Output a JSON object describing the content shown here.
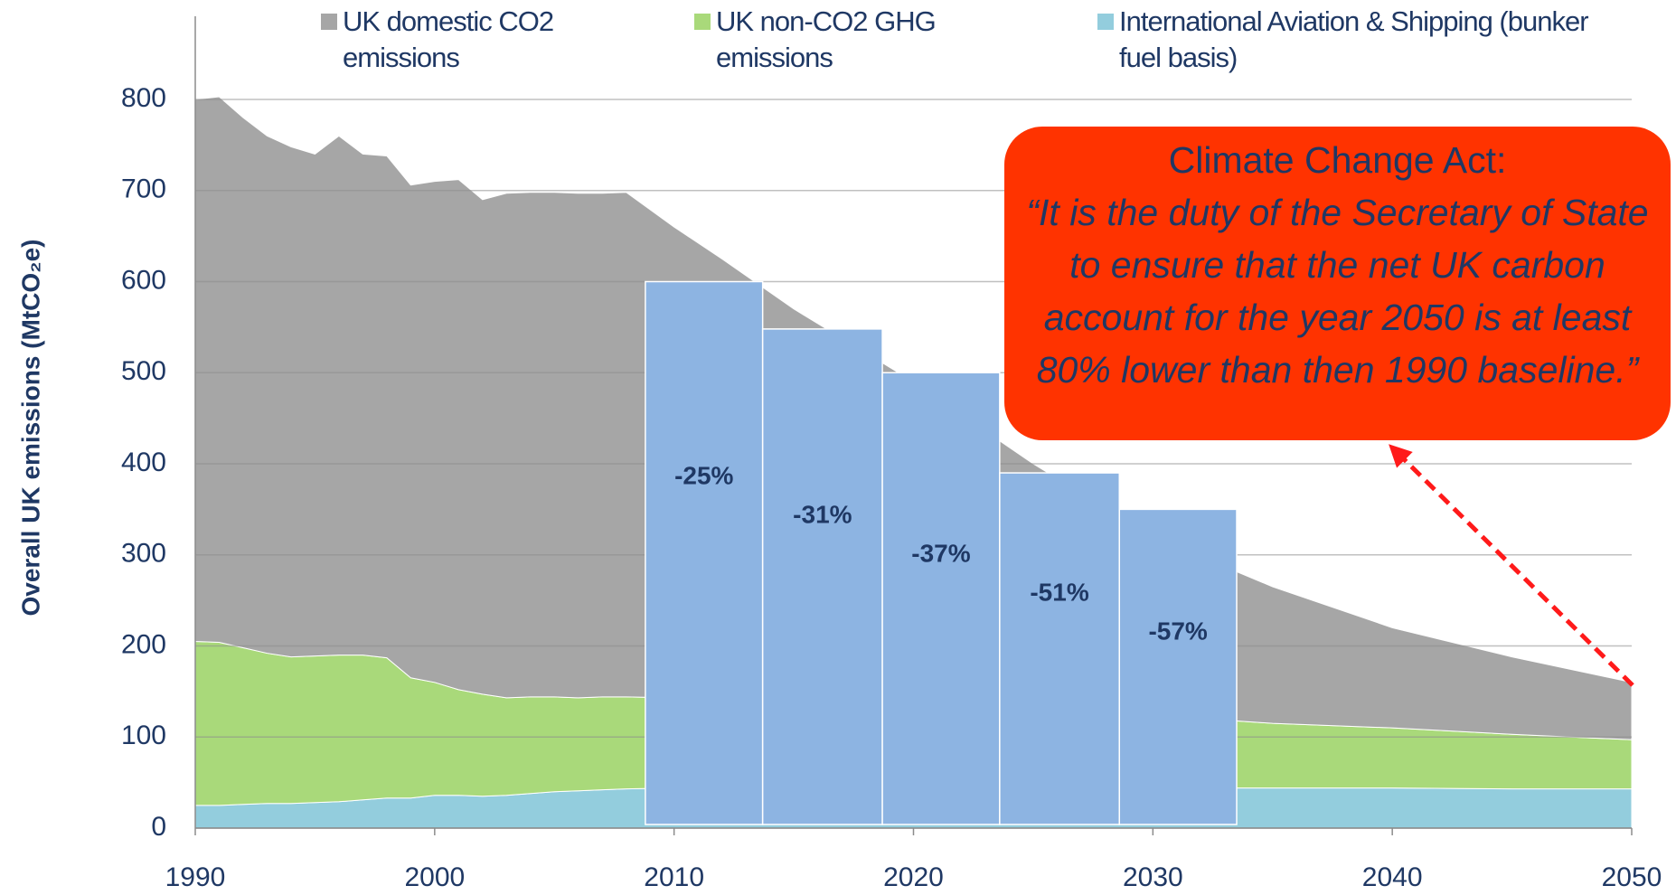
{
  "chart_data": {
    "type": "stacked_area",
    "y_label": "Overall UK emissions (MtCO₂e)",
    "x": [
      1990,
      1991,
      1992,
      1993,
      1994,
      1995,
      1996,
      1997,
      1998,
      1999,
      2000,
      2001,
      2002,
      2003,
      2004,
      2005,
      2006,
      2007,
      2008,
      2010,
      2012,
      2015,
      2020,
      2025,
      2030,
      2035,
      2040,
      2045,
      2050
    ],
    "series": [
      {
        "name": "UK domestic CO2 emissions",
        "color": "#a6a6a6",
        "values": [
          595,
          599,
          582,
          568,
          560,
          551,
          570,
          550,
          551,
          541,
          550,
          560,
          543,
          554,
          554,
          554,
          554,
          553,
          554,
          517,
          483,
          430,
          354,
          270,
          196,
          150,
          110,
          85,
          63
        ]
      },
      {
        "name": "UK non-CO2 GHG emissions",
        "color": "#a9d97a",
        "values": [
          180,
          179,
          172,
          165,
          161,
          161,
          161,
          159,
          154,
          132,
          124,
          116,
          112,
          107,
          106,
          104,
          102,
          102,
          101,
          99,
          98,
          96,
          92,
          86,
          80,
          71,
          66,
          60,
          54
        ]
      },
      {
        "name": "International Aviation & Shipping (bunker fuel basis)",
        "color": "#93cddd",
        "values": [
          25,
          25,
          26,
          27,
          27,
          28,
          29,
          31,
          33,
          33,
          36,
          36,
          35,
          36,
          38,
          40,
          41,
          42,
          43,
          44,
          44,
          44,
          44,
          44,
          44,
          44,
          44,
          43,
          43
        ]
      }
    ],
    "budgets": {
      "color": "#8db4e2",
      "edges": [
        2008.8,
        2013.7,
        2018.7,
        2023.6,
        2028.6,
        2033.5
      ],
      "values": [
        600,
        548,
        500,
        390,
        350
      ],
      "labels": [
        "-25%",
        "-31%",
        "-37%",
        "-51%",
        "-57%"
      ]
    },
    "annotation": {
      "title": "Climate Change Act:",
      "text": "“It is the duty of the Secretary of State to ensure that the net UK carbon account for the year 2050 is at least 80% lower than then 1990 baseline.”",
      "color": "#ff3300"
    },
    "xlim": [
      1990,
      2050
    ],
    "xticks": [
      1990,
      2000,
      2010,
      2020,
      2030,
      2040,
      2050
    ],
    "ylim": [
      0,
      800
    ],
    "yticks": [
      0,
      100,
      200,
      300,
      400,
      500,
      600,
      700,
      800
    ],
    "grid": true
  }
}
